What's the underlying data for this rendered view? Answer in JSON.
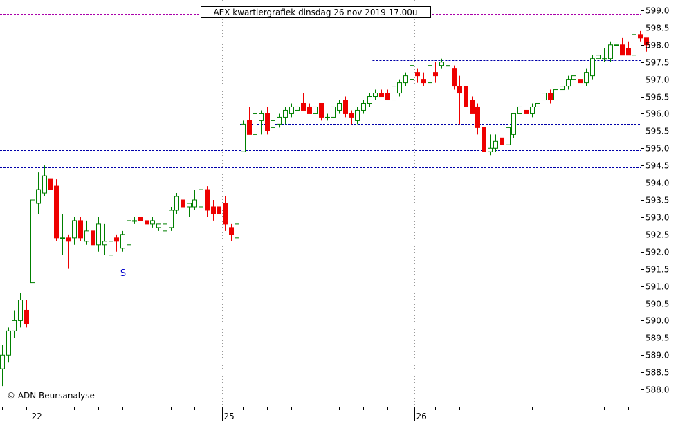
{
  "chart_data": {
    "type": "candlestick",
    "title": "AEX kwartiergrafiek dinsdag 26 nov 2019 17.00u",
    "credit": "© ADN Beursanalyse",
    "annotation": "S",
    "colors": {
      "up": "#008000",
      "down": "#ee0000",
      "support_line": "#0000aa",
      "resistance_line": "#aa00aa",
      "grid": "#999999"
    },
    "grid": true,
    "ylim": [
      587.5,
      599.3
    ],
    "y_ticks": [
      "588.0",
      "588.5",
      "589.0",
      "589.5",
      "590.0",
      "590.5",
      "591.0",
      "591.5",
      "592.0",
      "592.5",
      "593.0",
      "593.5",
      "594.0",
      "594.5",
      "595.0",
      "595.5",
      "596.0",
      "596.5",
      "597.0",
      "597.5",
      "598.0",
      "598.5",
      "599.0"
    ],
    "x_day_labels": [
      {
        "label": "22",
        "index": 4
      },
      {
        "label": "25",
        "index": 36
      },
      {
        "label": "26",
        "index": 68
      }
    ],
    "horizontal_lines": [
      {
        "value": 598.9,
        "kind": "resistance",
        "from": 0
      },
      {
        "value": 597.55,
        "kind": "support",
        "from": 62
      },
      {
        "value": 595.7,
        "kind": "support",
        "from": 40
      },
      {
        "value": 594.95,
        "kind": "support",
        "from": 0
      },
      {
        "value": 594.45,
        "kind": "support",
        "from": 0
      }
    ],
    "candles": [
      {
        "o": 588.6,
        "h": 589.3,
        "l": 588.1,
        "c": 589.0
      },
      {
        "o": 589.0,
        "h": 589.8,
        "l": 588.8,
        "c": 589.7
      },
      {
        "o": 589.7,
        "h": 590.3,
        "l": 589.5,
        "c": 590.0
      },
      {
        "o": 590.0,
        "h": 590.8,
        "l": 589.8,
        "c": 590.6
      },
      {
        "o": 590.3,
        "h": 590.6,
        "l": 589.8,
        "c": 589.9
      },
      {
        "o": 591.1,
        "h": 593.9,
        "l": 590.9,
        "c": 593.5
      },
      {
        "o": 593.4,
        "h": 594.3,
        "l": 593.1,
        "c": 593.8
      },
      {
        "o": 593.7,
        "h": 594.5,
        "l": 593.6,
        "c": 594.2
      },
      {
        "o": 594.1,
        "h": 594.2,
        "l": 593.7,
        "c": 593.8
      },
      {
        "o": 593.9,
        "h": 594.1,
        "l": 592.3,
        "c": 592.4
      },
      {
        "o": 592.4,
        "h": 593.1,
        "l": 591.9,
        "c": 592.4
      },
      {
        "o": 592.4,
        "h": 592.5,
        "l": 591.5,
        "c": 592.3
      },
      {
        "o": 592.4,
        "h": 593.0,
        "l": 592.2,
        "c": 592.9
      },
      {
        "o": 592.9,
        "h": 593.0,
        "l": 592.3,
        "c": 592.4
      },
      {
        "o": 592.3,
        "h": 592.9,
        "l": 592.2,
        "c": 592.6
      },
      {
        "o": 592.6,
        "h": 592.8,
        "l": 591.9,
        "c": 592.2
      },
      {
        "o": 592.2,
        "h": 593.0,
        "l": 592.0,
        "c": 592.8
      },
      {
        "o": 592.2,
        "h": 592.8,
        "l": 591.9,
        "c": 592.3
      },
      {
        "o": 591.9,
        "h": 592.5,
        "l": 591.8,
        "c": 592.3
      },
      {
        "o": 592.4,
        "h": 592.5,
        "l": 592.0,
        "c": 592.3
      },
      {
        "o": 592.1,
        "h": 592.6,
        "l": 592.0,
        "c": 592.5
      },
      {
        "o": 592.2,
        "h": 593.0,
        "l": 592.1,
        "c": 592.9
      },
      {
        "o": 592.9,
        "h": 593.0,
        "l": 592.8,
        "c": 592.9
      },
      {
        "o": 593.0,
        "h": 593.0,
        "l": 592.9,
        "c": 592.9
      },
      {
        "o": 592.9,
        "h": 593.0,
        "l": 592.7,
        "c": 592.8
      },
      {
        "o": 592.8,
        "h": 593.0,
        "l": 592.7,
        "c": 592.9
      },
      {
        "o": 592.7,
        "h": 592.8,
        "l": 592.6,
        "c": 592.8
      },
      {
        "o": 592.6,
        "h": 592.9,
        "l": 592.5,
        "c": 592.8
      },
      {
        "o": 592.7,
        "h": 593.3,
        "l": 592.6,
        "c": 593.2
      },
      {
        "o": 593.2,
        "h": 593.7,
        "l": 593.1,
        "c": 593.6
      },
      {
        "o": 593.5,
        "h": 593.8,
        "l": 593.2,
        "c": 593.3
      },
      {
        "o": 593.3,
        "h": 593.4,
        "l": 593.0,
        "c": 593.4
      },
      {
        "o": 593.3,
        "h": 593.8,
        "l": 593.2,
        "c": 593.5
      },
      {
        "o": 593.3,
        "h": 593.9,
        "l": 593.1,
        "c": 593.8
      },
      {
        "o": 593.8,
        "h": 593.9,
        "l": 593.0,
        "c": 593.2
      },
      {
        "o": 593.3,
        "h": 593.5,
        "l": 592.9,
        "c": 593.1
      },
      {
        "o": 593.3,
        "h": 593.3,
        "l": 592.9,
        "c": 593.1
      }
    ],
    "candles_b": [
      {
        "o": 593.4,
        "h": 593.6,
        "l": 592.6,
        "c": 592.8
      },
      {
        "o": 592.7,
        "h": 592.8,
        "l": 592.3,
        "c": 592.5
      },
      {
        "o": 592.4,
        "h": 592.8,
        "l": 592.3,
        "c": 592.8
      },
      {
        "o": 594.9,
        "h": 595.8,
        "l": 594.9,
        "c": 595.7
      },
      {
        "o": 595.8,
        "h": 596.2,
        "l": 595.4,
        "c": 595.4
      },
      {
        "o": 595.4,
        "h": 596.1,
        "l": 595.2,
        "c": 596.0
      },
      {
        "o": 595.8,
        "h": 596.1,
        "l": 595.4,
        "c": 596.0
      },
      {
        "o": 596.0,
        "h": 596.2,
        "l": 595.4,
        "c": 595.5
      },
      {
        "o": 595.6,
        "h": 595.9,
        "l": 595.4,
        "c": 595.8
      },
      {
        "o": 595.7,
        "h": 596.0,
        "l": 595.6,
        "c": 595.9
      },
      {
        "o": 595.9,
        "h": 596.2,
        "l": 595.7,
        "c": 596.1
      },
      {
        "o": 596.0,
        "h": 596.3,
        "l": 595.9,
        "c": 596.2
      },
      {
        "o": 596.1,
        "h": 596.3,
        "l": 595.9,
        "c": 596.2
      },
      {
        "o": 596.3,
        "h": 596.6,
        "l": 596.1,
        "c": 596.1
      },
      {
        "o": 596.2,
        "h": 596.3,
        "l": 596.0,
        "c": 596.0
      },
      {
        "o": 596.0,
        "h": 596.3,
        "l": 595.9,
        "c": 596.2
      },
      {
        "o": 596.3,
        "h": 596.3,
        "l": 595.8,
        "c": 595.9
      },
      {
        "o": 595.9,
        "h": 596.0,
        "l": 595.8,
        "c": 595.9
      },
      {
        "o": 595.9,
        "h": 596.3,
        "l": 595.8,
        "c": 596.2
      },
      {
        "o": 596.1,
        "h": 596.4,
        "l": 596.0,
        "c": 596.3
      },
      {
        "o": 596.4,
        "h": 596.5,
        "l": 595.9,
        "c": 596.0
      },
      {
        "o": 596.0,
        "h": 596.1,
        "l": 595.7,
        "c": 595.9
      },
      {
        "o": 595.8,
        "h": 596.2,
        "l": 595.7,
        "c": 596.1
      },
      {
        "o": 596.1,
        "h": 596.4,
        "l": 596.0,
        "c": 596.3
      },
      {
        "o": 596.3,
        "h": 596.6,
        "l": 596.2,
        "c": 596.5
      },
      {
        "o": 596.5,
        "h": 596.7,
        "l": 596.4,
        "c": 596.6
      },
      {
        "o": 596.6,
        "h": 596.7,
        "l": 596.5,
        "c": 596.5
      },
      {
        "o": 596.6,
        "h": 596.7,
        "l": 596.4,
        "c": 596.4
      },
      {
        "o": 596.4,
        "h": 596.8,
        "l": 596.4,
        "c": 596.8
      },
      {
        "o": 596.6,
        "h": 597.0,
        "l": 596.5,
        "c": 596.9
      },
      {
        "o": 596.9,
        "h": 597.2,
        "l": 596.8,
        "c": 597.1
      },
      {
        "o": 597.0,
        "h": 597.5,
        "l": 596.9,
        "c": 597.4
      },
      {
        "o": 597.2,
        "h": 597.3,
        "l": 596.9,
        "c": 597.1
      },
      {
        "o": 597.0,
        "h": 597.2,
        "l": 596.8,
        "c": 596.9
      },
      {
        "o": 596.9,
        "h": 597.6,
        "l": 596.8,
        "c": 597.4
      },
      {
        "o": 597.2,
        "h": 597.5,
        "l": 596.9,
        "c": 597.1
      }
    ],
    "candles_c": [
      {
        "o": 597.4,
        "h": 597.6,
        "l": 597.3,
        "c": 597.5
      },
      {
        "o": 597.4,
        "h": 597.5,
        "l": 597.2,
        "c": 597.4
      },
      {
        "o": 597.3,
        "h": 597.4,
        "l": 596.7,
        "c": 596.8
      },
      {
        "o": 596.8,
        "h": 597.1,
        "l": 595.7,
        "c": 596.6
      },
      {
        "o": 596.8,
        "h": 597.0,
        "l": 596.2,
        "c": 596.2
      },
      {
        "o": 596.4,
        "h": 596.5,
        "l": 596.0,
        "c": 596.0
      },
      {
        "o": 596.2,
        "h": 596.3,
        "l": 595.4,
        "c": 595.6
      },
      {
        "o": 595.6,
        "h": 595.7,
        "l": 594.6,
        "c": 594.9
      },
      {
        "o": 594.9,
        "h": 595.4,
        "l": 594.8,
        "c": 595.0
      },
      {
        "o": 595.0,
        "h": 595.4,
        "l": 594.9,
        "c": 595.2
      },
      {
        "o": 595.3,
        "h": 595.5,
        "l": 594.9,
        "c": 595.1
      },
      {
        "o": 595.1,
        "h": 595.9,
        "l": 595.0,
        "c": 595.6
      },
      {
        "o": 595.4,
        "h": 596.0,
        "l": 595.3,
        "c": 596.0
      },
      {
        "o": 596.0,
        "h": 596.2,
        "l": 595.8,
        "c": 596.2
      },
      {
        "o": 596.1,
        "h": 596.2,
        "l": 596.0,
        "c": 596.0
      },
      {
        "o": 596.0,
        "h": 596.3,
        "l": 595.9,
        "c": 596.2
      },
      {
        "o": 596.2,
        "h": 596.5,
        "l": 596.0,
        "c": 596.3
      },
      {
        "o": 596.4,
        "h": 596.8,
        "l": 596.2,
        "c": 596.6
      },
      {
        "o": 596.6,
        "h": 596.7,
        "l": 596.3,
        "c": 596.4
      },
      {
        "o": 596.4,
        "h": 596.8,
        "l": 596.3,
        "c": 596.7
      },
      {
        "o": 596.7,
        "h": 596.9,
        "l": 596.6,
        "c": 596.8
      },
      {
        "o": 596.8,
        "h": 597.1,
        "l": 596.7,
        "c": 597.0
      },
      {
        "o": 597.0,
        "h": 597.2,
        "l": 596.9,
        "c": 597.1
      },
      {
        "o": 597.0,
        "h": 597.2,
        "l": 596.8,
        "c": 596.9
      },
      {
        "o": 596.9,
        "h": 597.3,
        "l": 596.8,
        "c": 597.2
      },
      {
        "o": 597.1,
        "h": 597.7,
        "l": 597.0,
        "c": 597.6
      },
      {
        "o": 597.6,
        "h": 597.8,
        "l": 597.5,
        "c": 597.7
      },
      {
        "o": 597.6,
        "h": 597.9,
        "l": 597.5,
        "c": 597.6
      },
      {
        "o": 597.6,
        "h": 598.1,
        "l": 597.5,
        "c": 598.0
      },
      {
        "o": 598.0,
        "h": 598.2,
        "l": 597.8,
        "c": 598.0
      },
      {
        "o": 598.0,
        "h": 598.2,
        "l": 597.7,
        "c": 597.7
      },
      {
        "o": 597.9,
        "h": 598.1,
        "l": 597.7,
        "c": 597.7
      },
      {
        "o": 597.7,
        "h": 598.4,
        "l": 597.7,
        "c": 598.3
      },
      {
        "o": 598.3,
        "h": 598.4,
        "l": 598.1,
        "c": 598.2
      },
      {
        "o": 598.2,
        "h": 598.2,
        "l": 597.8,
        "c": 598.0
      }
    ]
  }
}
